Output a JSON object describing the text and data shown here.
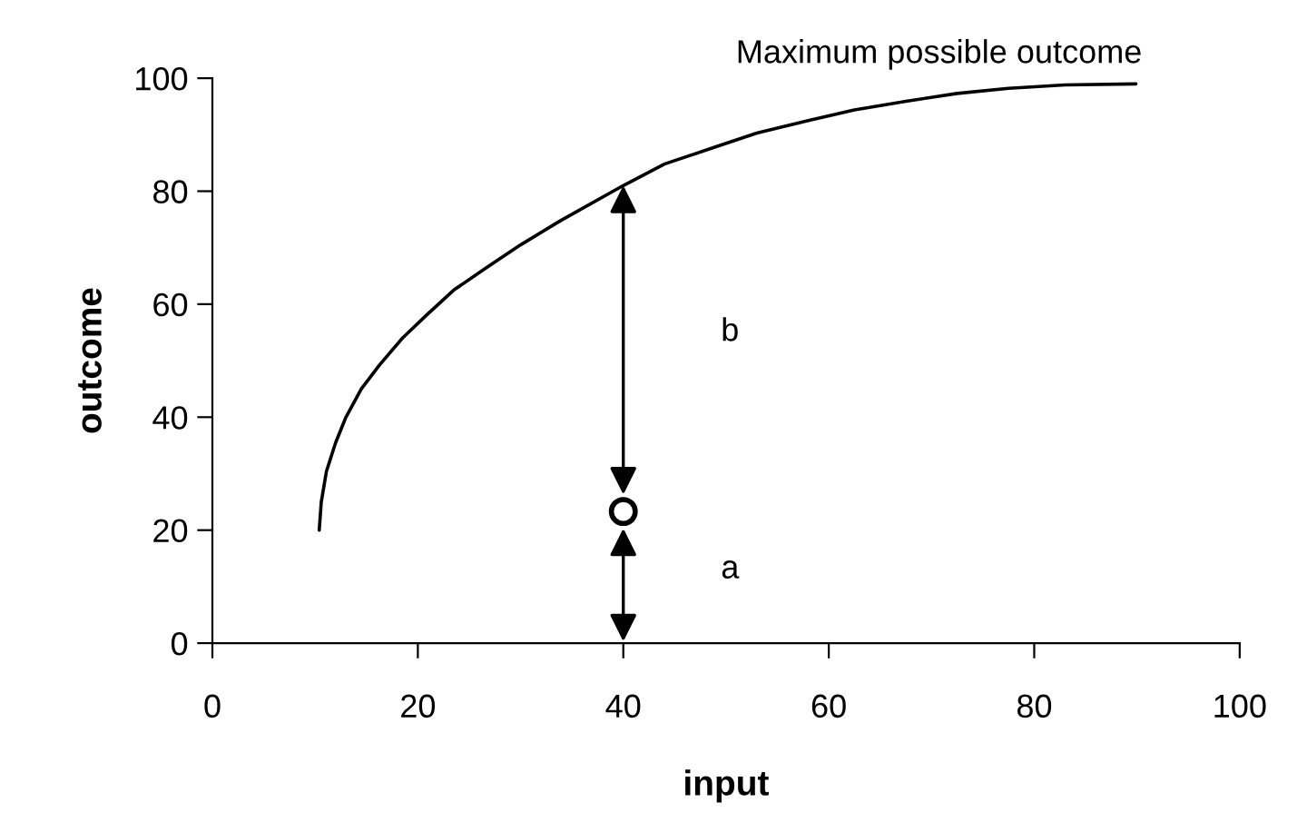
{
  "chart_data": {
    "type": "line",
    "xlabel": "input",
    "ylabel": "outcome",
    "xlim": [
      0,
      100
    ],
    "ylim": [
      0,
      100
    ],
    "xticks": [
      0,
      20,
      40,
      60,
      80,
      100
    ],
    "yticks": [
      0,
      20,
      40,
      60,
      80,
      100
    ],
    "grid": false,
    "legend": false,
    "series": [
      {
        "color": "#000000",
        "marker": "none",
        "x": [
          10.4,
          10.6,
          11.1,
          12,
          13,
          14.5,
          16.3,
          18.5,
          20.8,
          23.5,
          26.7,
          30,
          33.9,
          40,
          44,
          48.9,
          53,
          58,
          62.5,
          67.8,
          72.5,
          77.5,
          83,
          89.9
        ],
        "values": [
          20,
          25,
          30.4,
          35.5,
          40,
          45,
          49.3,
          54,
          58,
          62.5,
          66.5,
          70.5,
          74.8,
          81,
          84.8,
          87.8,
          90.3,
          92.5,
          94.4,
          96,
          97.3,
          98.2,
          98.8,
          99
        ]
      },
      {
        "type": "scatter",
        "color": "#000000",
        "marker": "circle",
        "x": [
          40
        ],
        "values": [
          23.3
        ]
      }
    ],
    "annotations": [
      "Maximum possible outcome",
      "b",
      "a"
    ]
  }
}
